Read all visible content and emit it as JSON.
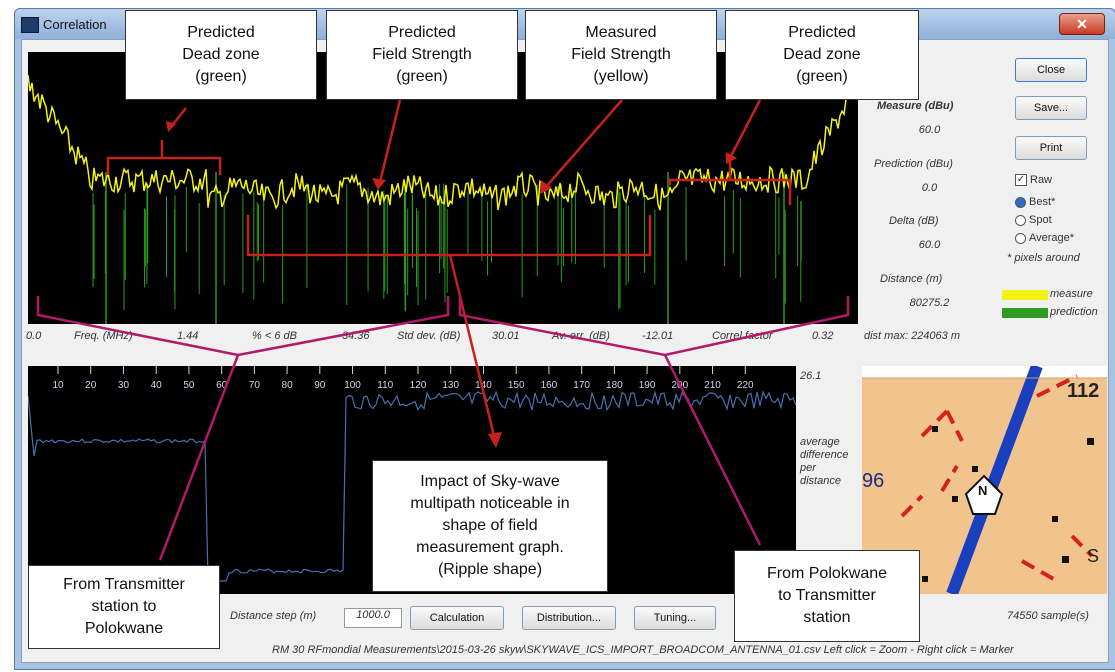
{
  "window": {
    "title": "Correlation",
    "close_glyph": "✕"
  },
  "callouts": {
    "dead_zone_left": "Predicted\nDead zone\n(green)",
    "field_strength": "Predicted\nField Strength\n(green)",
    "measured": "Measured\nField Strength\n(yellow)",
    "dead_zone_right": "Predicted\nDead zone\n(green)",
    "skywave": "Impact of Sky-wave\nmultipath noticeable in\nshape of field\nmeasurement graph.\n(Ripple shape)",
    "from_tx": "From Transmitter\nstation to\nPolokwane",
    "from_polokwane": "From Polokwane\nto Transmitter\nstation"
  },
  "side": {
    "measure_label": "Measure (dBu)",
    "measure_value": "60.0",
    "prediction_label": "Prediction (dBu)",
    "prediction_value": "0.0",
    "delta_label": "Delta (dB)",
    "delta_value": "60.0",
    "distance_label": "Distance (m)",
    "distance_value": "80275.2",
    "dist_max": "dist max: 224063 m",
    "close_btn": "Close",
    "save_btn": "Save...",
    "print_btn": "Print",
    "raw": "Raw",
    "best": "Best*",
    "spot": "Spot",
    "average": "Average*",
    "pixels_note": "* pixels around",
    "legend_measure": "measure",
    "legend_prediction": "prediction"
  },
  "stats": {
    "start": "0.0",
    "freq_label": "Freq. (MHz)",
    "freq_value": "1.44",
    "pct_label": "% < 6 dB",
    "pct_value": "34.36",
    "std_label": "Std dev. (dB)",
    "std_value": "30.01",
    "averr_label": "Av. err. (dB)",
    "averr_value": "-12.01",
    "correl_label": "Correl factor",
    "correl_value": "0.32"
  },
  "lower": {
    "ticks": [
      "10",
      "20",
      "30",
      "40",
      "50",
      "60",
      "70",
      "80",
      "90",
      "100",
      "110",
      "120",
      "130",
      "140",
      "150",
      "160",
      "170",
      "180",
      "190",
      "200",
      "210",
      "220"
    ],
    "max_value": "26.1",
    "avg_label": "average\ndifference\nper\ndistance"
  },
  "map": {
    "label_112": "112",
    "label_96": "96",
    "label_s": "S",
    "north": "N"
  },
  "bottom": {
    "distance_step_label": "Distance step (m)",
    "distance_step_value": "1000.0",
    "calculation_btn": "Calculation",
    "distribution_btn": "Distribution...",
    "tuning_btn": "Tuning...",
    "samples": "74550 sample(s)",
    "status": "RM 30 RFmondial Measurements\\2015-03-26 skyw\\SKYWAVE_ICS_IMPORT_BROADCOM_ANTENNA_01.csv   Left click = Zoom - Right click = Marker"
  },
  "colors": {
    "measure": "#f2f213",
    "prediction": "#2d9b1f",
    "annotation": "#c8201c",
    "map_bg": "#f2c48d",
    "road": "#1a3fbf"
  }
}
